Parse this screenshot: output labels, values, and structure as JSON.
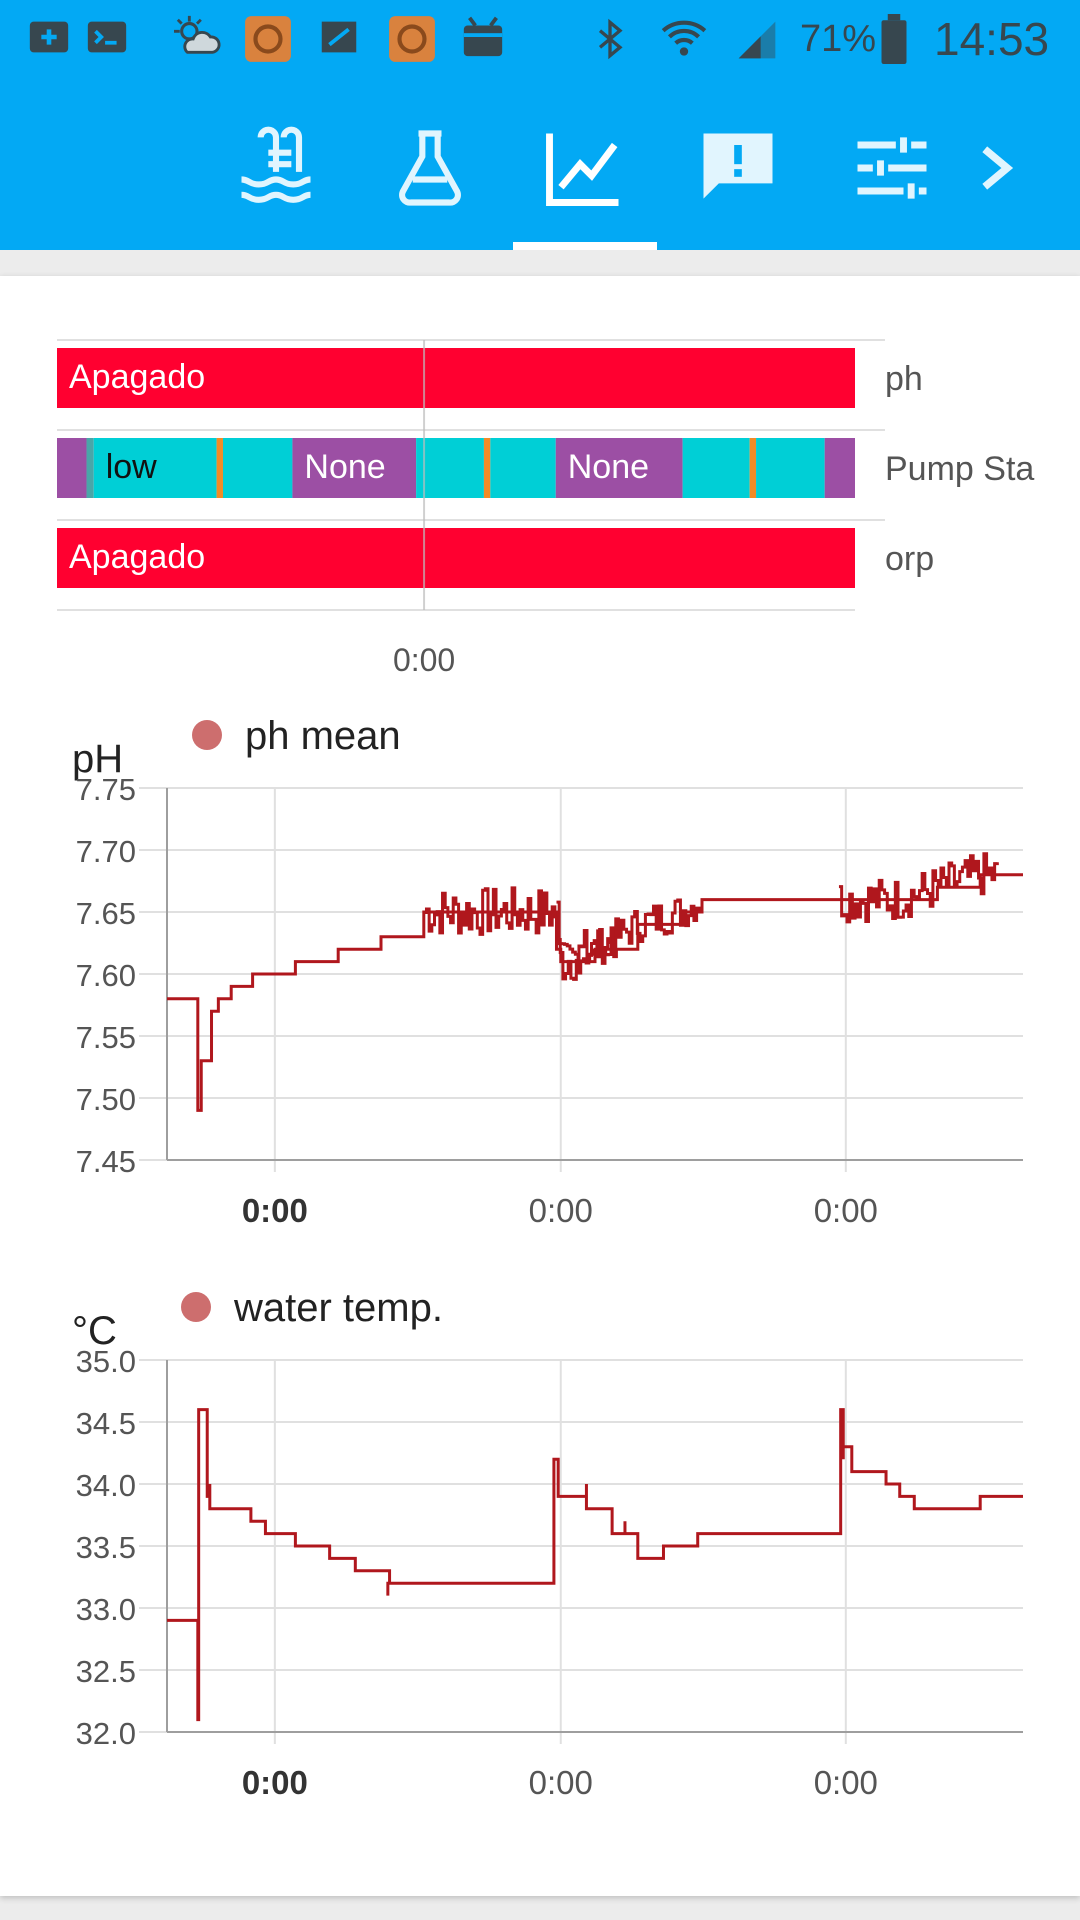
{
  "status_bar": {
    "icons": [
      "add-box-icon",
      "terminal-icon",
      "weather-cloudy-sun-icon",
      "app-orange-icon",
      "sd-card-icon",
      "app-orange-icon",
      "android-box-icon",
      "bluetooth-icon",
      "wifi-icon",
      "cell-signal-icon",
      "battery-icon"
    ],
    "battery": "71%",
    "time": "14:53"
  },
  "tabs": [
    {
      "icon": "pool-icon",
      "selected": false
    },
    {
      "icon": "flask-icon",
      "selected": false
    },
    {
      "icon": "chart-line-icon",
      "selected": true
    },
    {
      "icon": "alert-message-icon",
      "selected": false
    },
    {
      "icon": "tune-icon",
      "selected": false
    },
    {
      "icon": "chevron-right-icon",
      "selected": false
    }
  ],
  "colors": {
    "appbar": "#03a9f4",
    "red": "#ff0030",
    "purple": "#9c4fa4",
    "cyan": "#00cfd6",
    "orange": "#f28b26",
    "line": "#b0171d",
    "legend_dot": "#cd6e6e"
  },
  "timeline": {
    "rows": [
      {
        "label": "ph",
        "segments": [
          {
            "start": 0,
            "end": 1,
            "state": "Apagado",
            "color": "#ff0030"
          }
        ]
      },
      {
        "label": "Pump Sta",
        "segments": [
          {
            "start": 0,
            "end": 0.037,
            "state": "",
            "color": "#9c4fa4"
          },
          {
            "start": 0.037,
            "end": 0.046,
            "state": "",
            "color": "#4aa6a8"
          },
          {
            "start": 0.046,
            "end": 0.2,
            "state": "low",
            "color": "#00cfd6"
          },
          {
            "start": 0.2,
            "end": 0.208,
            "state": "",
            "color": "#f28b26"
          },
          {
            "start": 0.208,
            "end": 0.295,
            "state": "",
            "color": "#00cfd6"
          },
          {
            "start": 0.295,
            "end": 0.45,
            "state": "None",
            "color": "#9c4fa4"
          },
          {
            "start": 0.45,
            "end": 0.535,
            "state": "",
            "color": "#00cfd6"
          },
          {
            "start": 0.535,
            "end": 0.543,
            "state": "",
            "color": "#f28b26"
          },
          {
            "start": 0.543,
            "end": 0.625,
            "state": "",
            "color": "#00cfd6"
          },
          {
            "start": 0.625,
            "end": 0.784,
            "state": "None",
            "color": "#9c4fa4"
          },
          {
            "start": 0.784,
            "end": 0.868,
            "state": "",
            "color": "#00cfd6"
          },
          {
            "start": 0.868,
            "end": 0.876,
            "state": "",
            "color": "#f28b26"
          },
          {
            "start": 0.876,
            "end": 0.962,
            "state": "",
            "color": "#00cfd6"
          },
          {
            "start": 0.962,
            "end": 1,
            "state": "",
            "color": "#9c4fa4"
          }
        ]
      },
      {
        "label": "orp",
        "segments": [
          {
            "start": 0,
            "end": 1,
            "state": "Apagado",
            "color": "#ff0030"
          }
        ]
      }
    ],
    "x_ticks": [
      {
        "value": 0.46,
        "label": "0:00"
      }
    ]
  },
  "chart_data": [
    {
      "type": "line",
      "ylabel": "pH",
      "title": "",
      "legend": [
        {
          "name": "ph mean",
          "color": "#cd6e6e"
        }
      ],
      "ylim": [
        7.45,
        7.75
      ],
      "y_ticks": [
        "7.75",
        "7.70",
        "7.65",
        "7.60",
        "7.55",
        "7.50",
        "7.45"
      ],
      "xlim": [
        0,
        1
      ],
      "x_ticks": [
        {
          "value": 0.126,
          "label": "0:00",
          "bold": true
        },
        {
          "value": 0.46,
          "label": "0:00",
          "bold": false
        },
        {
          "value": 0.793,
          "label": "0:00",
          "bold": false
        }
      ],
      "series": [
        {
          "name": "ph mean",
          "step": true,
          "noise": [
            [
              0.3,
              0.525,
              0.02
            ],
            [
              0.455,
              0.625,
              0.015
            ],
            [
              0.785,
              0.97,
              0.018
            ]
          ],
          "x": [
            0,
            0.036,
            0.036,
            0.04,
            0.045,
            0.052,
            0.06,
            0.075,
            0.1,
            0.15,
            0.2,
            0.25,
            0.3,
            0.3,
            0.455,
            0.455,
            0.46,
            0.5,
            0.55,
            0.6,
            0.625,
            0.625,
            0.785,
            0.785,
            0.8,
            0.85,
            0.9,
            0.95,
            0.97,
            0.97,
            1
          ],
          "values": [
            7.58,
            7.58,
            7.49,
            7.53,
            7.53,
            7.57,
            7.58,
            7.59,
            7.6,
            7.61,
            7.62,
            7.63,
            7.65,
            7.65,
            7.65,
            7.62,
            7.61,
            7.62,
            7.64,
            7.65,
            7.66,
            7.66,
            7.66,
            7.66,
            7.66,
            7.66,
            7.67,
            7.68,
            7.68,
            7.68,
            7.68
          ]
        }
      ]
    },
    {
      "type": "line",
      "ylabel": "°C",
      "title": "",
      "legend": [
        {
          "name": "water temp.",
          "color": "#cd6e6e"
        }
      ],
      "ylim": [
        32.0,
        35.0
      ],
      "y_ticks": [
        "35.0",
        "34.5",
        "34.0",
        "33.5",
        "33.0",
        "32.5",
        "32.0"
      ],
      "xlim": [
        0,
        1
      ],
      "x_ticks": [
        {
          "value": 0.126,
          "label": "0:00",
          "bold": true
        },
        {
          "value": 0.46,
          "label": "0:00",
          "bold": false
        },
        {
          "value": 0.793,
          "label": "0:00",
          "bold": false
        }
      ],
      "series": [
        {
          "name": "water temp.",
          "step": true,
          "noise": [],
          "x": [
            0,
            0.036,
            0.036,
            0.037,
            0.037,
            0.038,
            0.038,
            0.047,
            0.047,
            0.05,
            0.05,
            0.053,
            0.053,
            0.098,
            0.098,
            0.115,
            0.115,
            0.15,
            0.15,
            0.19,
            0.19,
            0.22,
            0.22,
            0.26,
            0.26,
            0.258,
            0.258,
            0.452,
            0.452,
            0.457,
            0.457,
            0.49,
            0.49,
            0.52,
            0.52,
            0.535,
            0.535,
            0.55,
            0.55,
            0.58,
            0.58,
            0.62,
            0.62,
            0.787,
            0.787,
            0.79,
            0.79,
            0.8,
            0.8,
            0.8,
            0.8,
            0.84,
            0.84,
            0.856,
            0.856,
            0.873,
            0.873,
            0.9,
            0.9,
            0.95,
            0.95,
            1
          ],
          "values": [
            32.9,
            32.9,
            32.1,
            34.0,
            34.6,
            34.6,
            34.6,
            34.6,
            33.9,
            34.0,
            33.8,
            33.8,
            33.8,
            33.8,
            33.7,
            33.7,
            33.6,
            33.6,
            33.5,
            33.5,
            33.4,
            33.4,
            33.3,
            33.3,
            33.2,
            33.1,
            33.2,
            33.2,
            34.2,
            34.2,
            33.9,
            34.0,
            33.8,
            33.7,
            33.6,
            33.7,
            33.6,
            33.5,
            33.4,
            33.4,
            33.5,
            33.5,
            33.6,
            33.6,
            34.6,
            34.2,
            34.3,
            34.2,
            34.2,
            34.1,
            34.1,
            34.0,
            34.0,
            34.0,
            33.9,
            33.9,
            33.8,
            33.8,
            33.8,
            33.8,
            33.9,
            33.9
          ]
        }
      ]
    }
  ]
}
